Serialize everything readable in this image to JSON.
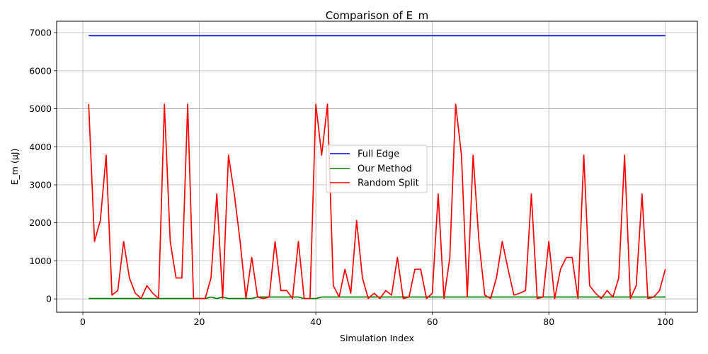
{
  "chart_data": {
    "type": "line",
    "title": "Comparison of E_m",
    "xlabel": "Simulation Index",
    "ylabel": "E_m (μJ)",
    "xlim": [
      -4.5,
      105.5
    ],
    "ylim": [
      -350,
      7300
    ],
    "xticks": [
      0,
      20,
      40,
      60,
      80,
      100
    ],
    "yticks": [
      0,
      1000,
      2000,
      3000,
      4000,
      5000,
      6000,
      7000
    ],
    "grid": true,
    "legend_position": "center",
    "x": [
      1,
      2,
      3,
      4,
      5,
      6,
      7,
      8,
      9,
      10,
      11,
      12,
      13,
      14,
      15,
      16,
      17,
      18,
      19,
      20,
      21,
      22,
      23,
      24,
      25,
      26,
      27,
      28,
      29,
      30,
      31,
      32,
      33,
      34,
      35,
      36,
      37,
      38,
      39,
      40,
      41,
      42,
      43,
      44,
      45,
      46,
      47,
      48,
      49,
      50,
      51,
      52,
      53,
      54,
      55,
      56,
      57,
      58,
      59,
      60,
      61,
      62,
      63,
      64,
      65,
      66,
      67,
      68,
      69,
      70,
      71,
      72,
      73,
      74,
      75,
      76,
      77,
      78,
      79,
      80,
      81,
      82,
      83,
      84,
      85,
      86,
      87,
      88,
      89,
      90,
      91,
      92,
      93,
      94,
      95,
      96,
      97,
      98,
      99,
      100
    ],
    "series": [
      {
        "name": "Full Edge",
        "color": "#0000ff",
        "values": [
          6920,
          6920,
          6920,
          6920,
          6920,
          6920,
          6920,
          6920,
          6920,
          6920,
          6920,
          6920,
          6920,
          6920,
          6920,
          6920,
          6920,
          6920,
          6920,
          6920,
          6920,
          6920,
          6920,
          6920,
          6920,
          6920,
          6920,
          6920,
          6920,
          6920,
          6920,
          6920,
          6920,
          6920,
          6920,
          6920,
          6920,
          6920,
          6920,
          6920,
          6920,
          6920,
          6920,
          6920,
          6920,
          6920,
          6920,
          6920,
          6920,
          6920,
          6920,
          6920,
          6920,
          6920,
          6920,
          6920,
          6920,
          6920,
          6920,
          6920,
          6920,
          6920,
          6920,
          6920,
          6920,
          6920,
          6920,
          6920,
          6920,
          6920,
          6920,
          6920,
          6920,
          6920,
          6920,
          6920,
          6920,
          6920,
          6920,
          6920,
          6920,
          6920,
          6920,
          6920,
          6920,
          6920,
          6920,
          6920,
          6920,
          6920,
          6920,
          6920,
          6920,
          6920,
          6920,
          6920,
          6920,
          6920,
          6920,
          6920
        ]
      },
      {
        "name": "Our Method",
        "color": "#008000",
        "values": [
          10,
          10,
          10,
          10,
          10,
          10,
          10,
          10,
          10,
          10,
          10,
          10,
          10,
          10,
          10,
          10,
          10,
          10,
          10,
          10,
          10,
          50,
          10,
          50,
          10,
          10,
          10,
          10,
          10,
          50,
          50,
          50,
          50,
          50,
          50,
          50,
          50,
          10,
          10,
          10,
          50,
          50,
          50,
          50,
          50,
          50,
          50,
          50,
          50,
          50,
          50,
          50,
          50,
          50,
          50,
          50,
          50,
          50,
          50,
          50,
          50,
          50,
          50,
          50,
          50,
          50,
          50,
          50,
          50,
          50,
          50,
          50,
          50,
          50,
          50,
          50,
          50,
          50,
          50,
          50,
          50,
          50,
          50,
          50,
          50,
          50,
          50,
          50,
          50,
          50,
          50,
          50,
          50,
          50,
          50,
          50,
          50,
          50,
          50,
          50
        ]
      },
      {
        "name": "Random Split",
        "color": "#ff0000",
        "values": [
          5120,
          1510,
          2060,
          3780,
          100,
          220,
          1510,
          550,
          150,
          10,
          350,
          150,
          10,
          5120,
          1510,
          550,
          550,
          5120,
          10,
          10,
          10,
          550,
          2760,
          10,
          3780,
          2760,
          1510,
          10,
          1090,
          50,
          10,
          50,
          1510,
          220,
          220,
          10,
          1510,
          10,
          10,
          5120,
          3780,
          5120,
          350,
          50,
          780,
          150,
          2060,
          550,
          10,
          150,
          10,
          220,
          100,
          1090,
          10,
          50,
          780,
          780,
          10,
          150,
          2760,
          10,
          1090,
          5120,
          3780,
          50,
          3780,
          1510,
          100,
          10,
          550,
          1510,
          780,
          100,
          150,
          220,
          2760,
          10,
          50,
          1510,
          10,
          780,
          1090,
          1090,
          10,
          3780,
          350,
          150,
          10,
          220,
          50,
          550,
          3780,
          10,
          350,
          2760,
          10,
          50,
          220,
          780
        ]
      }
    ]
  }
}
